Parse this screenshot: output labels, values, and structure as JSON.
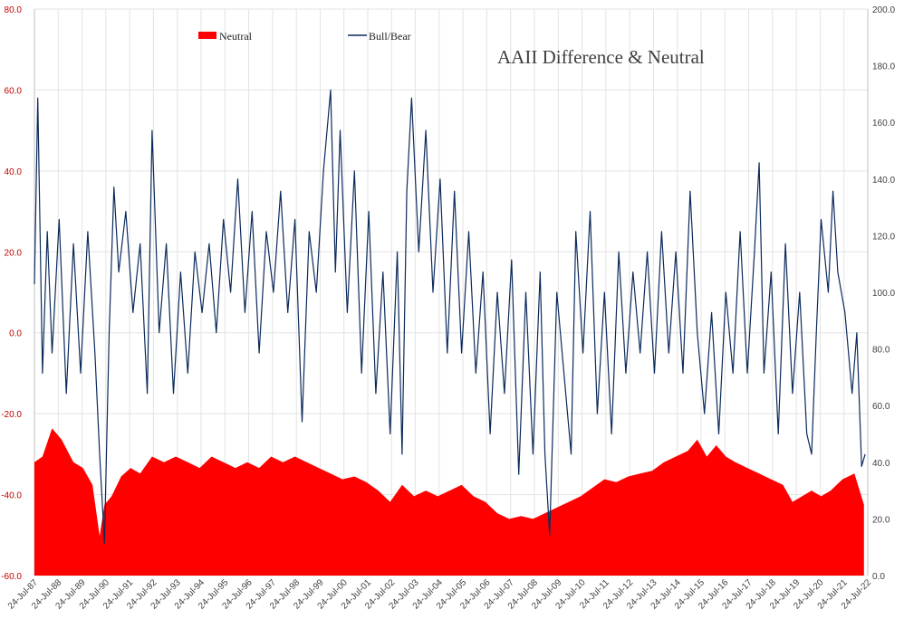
{
  "chart_data": {
    "type": "line",
    "title": "AAII Difference & Neutral",
    "grid": true,
    "legend_position": "top-left",
    "colors": {
      "neutral": "#ff0000",
      "bull_bear": "#0b2a5b",
      "left_axis": "#c00000",
      "right_axis": "#404040",
      "grid": "#e3e3e3"
    },
    "y_left": {
      "min": -60,
      "max": 80,
      "ticks": [
        "-60.0",
        "-40.0",
        "-20.0",
        "0.0",
        "20.0",
        "40.0",
        "60.0",
        "80.0"
      ]
    },
    "y_right": {
      "min": 0,
      "max": 200,
      "ticks": [
        "0.0",
        "20.0",
        "40.0",
        "60.0",
        "80.0",
        "100.0",
        "120.0",
        "140.0",
        "160.0",
        "180.0",
        "200.0"
      ]
    },
    "x_ticks": [
      "24-Jul-87",
      "24-Jul-88",
      "24-Jul-89",
      "24-Jul-90",
      "24-Jul-91",
      "24-Jul-92",
      "24-Jul-93",
      "24-Jul-94",
      "24-Jul-95",
      "24-Jul-96",
      "24-Jul-97",
      "24-Jul-98",
      "24-Jul-99",
      "24-Jul-00",
      "24-Jul-01",
      "24-Jul-02",
      "24-Jul-03",
      "24-Jul-04",
      "24-Jul-05",
      "24-Jul-06",
      "24-Jul-07",
      "24-Jul-08",
      "24-Jul-09",
      "24-Jul-10",
      "24-Jul-11",
      "24-Jul-12",
      "24-Jul-13",
      "24-Jul-14",
      "24-Jul-15",
      "24-Jul-16",
      "24-Jul-17",
      "24-Jul-18",
      "24-Jul-19",
      "24-Jul-20",
      "24-Jul-21",
      "24-Jul-22"
    ],
    "series": [
      {
        "name": "Neutral",
        "type": "area",
        "axis": "right",
        "points": [
          [
            1987.56,
            40
          ],
          [
            1987.9,
            42
          ],
          [
            1988.3,
            52
          ],
          [
            1988.7,
            48
          ],
          [
            1989.2,
            40
          ],
          [
            1989.6,
            38
          ],
          [
            1990.0,
            32
          ],
          [
            1990.3,
            14
          ],
          [
            1990.5,
            25
          ],
          [
            1990.8,
            28
          ],
          [
            1991.2,
            35
          ],
          [
            1991.6,
            38
          ],
          [
            1992.0,
            36
          ],
          [
            1992.5,
            42
          ],
          [
            1993.0,
            40
          ],
          [
            1993.5,
            42
          ],
          [
            1994.0,
            40
          ],
          [
            1994.5,
            38
          ],
          [
            1995.0,
            42
          ],
          [
            1995.5,
            40
          ],
          [
            1996.0,
            38
          ],
          [
            1996.5,
            40
          ],
          [
            1997.0,
            38
          ],
          [
            1997.5,
            42
          ],
          [
            1998.0,
            40
          ],
          [
            1998.5,
            42
          ],
          [
            1999.0,
            40
          ],
          [
            1999.5,
            38
          ],
          [
            2000.0,
            36
          ],
          [
            2000.5,
            34
          ],
          [
            2001.0,
            35
          ],
          [
            2001.5,
            33
          ],
          [
            2002.0,
            30
          ],
          [
            2002.5,
            26
          ],
          [
            2003.0,
            32
          ],
          [
            2003.5,
            28
          ],
          [
            2004.0,
            30
          ],
          [
            2004.5,
            28
          ],
          [
            2005.0,
            30
          ],
          [
            2005.5,
            32
          ],
          [
            2006.0,
            28
          ],
          [
            2006.5,
            26
          ],
          [
            2007.0,
            22
          ],
          [
            2007.5,
            20
          ],
          [
            2008.0,
            21
          ],
          [
            2008.5,
            20
          ],
          [
            2009.0,
            22
          ],
          [
            2009.5,
            24
          ],
          [
            2010.0,
            26
          ],
          [
            2010.5,
            28
          ],
          [
            2011.0,
            31
          ],
          [
            2011.5,
            34
          ],
          [
            2012.0,
            33
          ],
          [
            2012.5,
            35
          ],
          [
            2013.0,
            36
          ],
          [
            2013.5,
            37
          ],
          [
            2014.0,
            40
          ],
          [
            2014.5,
            42
          ],
          [
            2015.0,
            44
          ],
          [
            2015.4,
            48
          ],
          [
            2015.8,
            42
          ],
          [
            2016.2,
            46
          ],
          [
            2016.6,
            42
          ],
          [
            2017.0,
            40
          ],
          [
            2017.5,
            38
          ],
          [
            2018.0,
            36
          ],
          [
            2018.5,
            34
          ],
          [
            2019.0,
            32
          ],
          [
            2019.4,
            26
          ],
          [
            2019.8,
            28
          ],
          [
            2020.2,
            30
          ],
          [
            2020.6,
            28
          ],
          [
            2021.0,
            30
          ],
          [
            2021.5,
            34
          ],
          [
            2022.0,
            36
          ],
          [
            2022.4,
            25
          ]
        ]
      },
      {
        "name": "Bull/Bear",
        "type": "line",
        "axis": "left",
        "points": [
          [
            1987.56,
            12
          ],
          [
            1987.7,
            58
          ],
          [
            1987.9,
            -10
          ],
          [
            1988.1,
            25
          ],
          [
            1988.3,
            -5
          ],
          [
            1988.6,
            28
          ],
          [
            1988.9,
            -15
          ],
          [
            1989.2,
            22
          ],
          [
            1989.5,
            -10
          ],
          [
            1989.8,
            25
          ],
          [
            1990.1,
            -5
          ],
          [
            1990.3,
            -30
          ],
          [
            1990.5,
            -52
          ],
          [
            1990.7,
            0
          ],
          [
            1990.9,
            36
          ],
          [
            1991.1,
            15
          ],
          [
            1991.4,
            30
          ],
          [
            1991.7,
            5
          ],
          [
            1992.0,
            22
          ],
          [
            1992.3,
            -15
          ],
          [
            1992.5,
            50
          ],
          [
            1992.8,
            0
          ],
          [
            1993.1,
            22
          ],
          [
            1993.4,
            -15
          ],
          [
            1993.7,
            15
          ],
          [
            1994.0,
            -10
          ],
          [
            1994.3,
            20
          ],
          [
            1994.6,
            5
          ],
          [
            1994.9,
            22
          ],
          [
            1995.2,
            0
          ],
          [
            1995.5,
            28
          ],
          [
            1995.8,
            10
          ],
          [
            1996.1,
            38
          ],
          [
            1996.4,
            5
          ],
          [
            1996.7,
            30
          ],
          [
            1997.0,
            -5
          ],
          [
            1997.3,
            25
          ],
          [
            1997.6,
            10
          ],
          [
            1997.9,
            35
          ],
          [
            1998.2,
            5
          ],
          [
            1998.5,
            28
          ],
          [
            1998.8,
            -22
          ],
          [
            1999.1,
            25
          ],
          [
            1999.4,
            10
          ],
          [
            1999.7,
            40
          ],
          [
            2000.0,
            60
          ],
          [
            2000.2,
            15
          ],
          [
            2000.4,
            50
          ],
          [
            2000.7,
            5
          ],
          [
            2001.0,
            40
          ],
          [
            2001.3,
            -10
          ],
          [
            2001.6,
            30
          ],
          [
            2001.9,
            -15
          ],
          [
            2002.2,
            15
          ],
          [
            2002.5,
            -25
          ],
          [
            2002.8,
            20
          ],
          [
            2003.0,
            -30
          ],
          [
            2003.2,
            35
          ],
          [
            2003.4,
            58
          ],
          [
            2003.7,
            20
          ],
          [
            2004.0,
            50
          ],
          [
            2004.3,
            10
          ],
          [
            2004.6,
            38
          ],
          [
            2004.9,
            -5
          ],
          [
            2005.2,
            35
          ],
          [
            2005.5,
            -5
          ],
          [
            2005.8,
            25
          ],
          [
            2006.1,
            -10
          ],
          [
            2006.4,
            15
          ],
          [
            2006.7,
            -25
          ],
          [
            2007.0,
            10
          ],
          [
            2007.3,
            -15
          ],
          [
            2007.6,
            18
          ],
          [
            2007.9,
            -35
          ],
          [
            2008.2,
            10
          ],
          [
            2008.5,
            -30
          ],
          [
            2008.8,
            15
          ],
          [
            2009.0,
            -30
          ],
          [
            2009.2,
            -50
          ],
          [
            2009.5,
            10
          ],
          [
            2009.8,
            -10
          ],
          [
            2010.1,
            -30
          ],
          [
            2010.3,
            25
          ],
          [
            2010.6,
            -5
          ],
          [
            2010.9,
            30
          ],
          [
            2011.2,
            -20
          ],
          [
            2011.5,
            10
          ],
          [
            2011.8,
            -25
          ],
          [
            2012.1,
            20
          ],
          [
            2012.4,
            -10
          ],
          [
            2012.7,
            15
          ],
          [
            2013.0,
            -5
          ],
          [
            2013.3,
            20
          ],
          [
            2013.6,
            -10
          ],
          [
            2013.9,
            25
          ],
          [
            2014.2,
            -5
          ],
          [
            2014.5,
            20
          ],
          [
            2014.8,
            -10
          ],
          [
            2015.1,
            35
          ],
          [
            2015.4,
            0
          ],
          [
            2015.7,
            -20
          ],
          [
            2016.0,
            5
          ],
          [
            2016.3,
            -25
          ],
          [
            2016.6,
            10
          ],
          [
            2016.9,
            -10
          ],
          [
            2017.2,
            25
          ],
          [
            2017.5,
            -10
          ],
          [
            2017.8,
            20
          ],
          [
            2018.0,
            42
          ],
          [
            2018.2,
            -10
          ],
          [
            2018.5,
            15
          ],
          [
            2018.8,
            -25
          ],
          [
            2019.1,
            22
          ],
          [
            2019.4,
            -15
          ],
          [
            2019.7,
            10
          ],
          [
            2020.0,
            -25
          ],
          [
            2020.2,
            -30
          ],
          [
            2020.4,
            0
          ],
          [
            2020.6,
            28
          ],
          [
            2020.9,
            10
          ],
          [
            2021.1,
            35
          ],
          [
            2021.3,
            15
          ],
          [
            2021.6,
            5
          ],
          [
            2021.9,
            -15
          ],
          [
            2022.1,
            0
          ],
          [
            2022.3,
            -33
          ],
          [
            2022.45,
            -30
          ]
        ]
      }
    ]
  }
}
